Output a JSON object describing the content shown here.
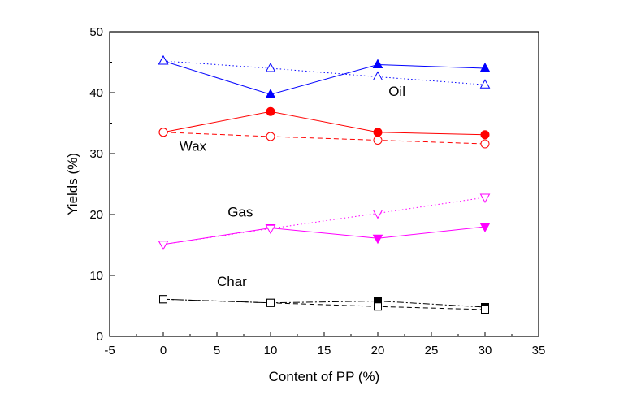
{
  "chart_data": {
    "type": "line",
    "title": "",
    "xlabel": "Content of PP (%)",
    "ylabel": "Yields (%)",
    "xlim": [
      -5,
      35
    ],
    "ylim": [
      0,
      50
    ],
    "x_ticks": [
      "-5",
      "0",
      "5",
      "10",
      "15",
      "20",
      "25",
      "30",
      "35"
    ],
    "y_ticks": [
      "0",
      "10",
      "20",
      "30",
      "40",
      "50"
    ],
    "x": [
      0,
      10,
      20,
      30
    ],
    "grid": false,
    "series": [
      {
        "name": "Oil",
        "marker": "triangle-up",
        "filled": true,
        "color": "#0000ff",
        "dash": "solid",
        "values": [
          45.2,
          39.7,
          44.6,
          44.0
        ]
      },
      {
        "name": "",
        "marker": "triangle-up",
        "filled": false,
        "color": "#0000ff",
        "dash": "dot",
        "values": [
          45.2,
          44.0,
          42.6,
          41.3
        ]
      },
      {
        "name": "Wax",
        "marker": "circle",
        "filled": true,
        "color": "#ff0000",
        "dash": "solid",
        "values": [
          33.5,
          36.9,
          33.5,
          33.1
        ]
      },
      {
        "name": "",
        "marker": "circle",
        "filled": false,
        "color": "#ff0000",
        "dash": "dash",
        "values": [
          33.5,
          32.8,
          32.2,
          31.6
        ]
      },
      {
        "name": "Gas",
        "marker": "triangle-down",
        "filled": true,
        "color": "#ff00ff",
        "dash": "solid",
        "values": [
          15.1,
          17.8,
          16.1,
          18.0
        ]
      },
      {
        "name": "",
        "marker": "triangle-down",
        "filled": false,
        "color": "#ff00ff",
        "dash": "dot",
        "values": [
          15.1,
          17.7,
          20.2,
          22.8
        ]
      },
      {
        "name": "Char",
        "marker": "square",
        "filled": true,
        "color": "#000000",
        "dash": "dashdot",
        "values": [
          6.1,
          5.5,
          5.8,
          4.8
        ]
      },
      {
        "name": "",
        "marker": "square",
        "filled": false,
        "color": "#000000",
        "dash": "dash",
        "values": [
          6.1,
          5.5,
          4.9,
          4.4
        ]
      }
    ],
    "labels": [
      {
        "text": "Oil",
        "x": 21.0,
        "y": 39.5
      },
      {
        "text": "Wax",
        "x": 1.5,
        "y": 30.5
      },
      {
        "text": "Gas",
        "x": 6.0,
        "y": 19.7
      },
      {
        "text": "Char",
        "x": 5.0,
        "y": 8.3
      }
    ]
  }
}
